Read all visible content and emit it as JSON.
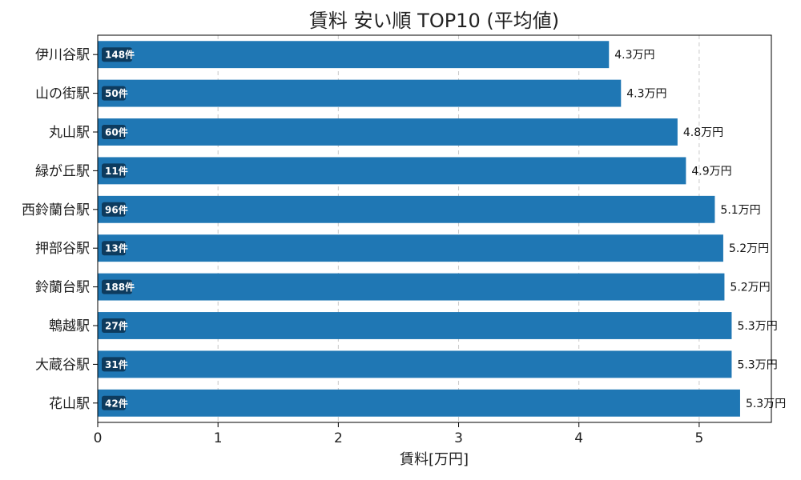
{
  "chart_data": {
    "type": "bar",
    "orientation": "horizontal",
    "title": "賃料 安い順 TOP10 (平均値)",
    "xlabel": "賃料[万円]",
    "ylabel": "",
    "xlim": [
      0,
      5.6
    ],
    "xticks": [
      0,
      1,
      2,
      3,
      4,
      5
    ],
    "grid": "x-dashed",
    "bar_color": "#1f77b4",
    "badge_color": "#0d3b5e",
    "categories": [
      "伊川谷駅",
      "山の街駅",
      "丸山駅",
      "緑が丘駅",
      "西鈴蘭台駅",
      "押部谷駅",
      "鈴蘭台駅",
      "鵯越駅",
      "大蔵谷駅",
      "花山駅"
    ],
    "values": [
      4.25,
      4.35,
      4.82,
      4.89,
      5.13,
      5.2,
      5.21,
      5.27,
      5.27,
      5.34
    ],
    "value_labels": [
      "4.3万円",
      "4.3万円",
      "4.8万円",
      "4.9万円",
      "5.1万円",
      "5.2万円",
      "5.2万円",
      "5.3万円",
      "5.3万円",
      "5.3万円"
    ],
    "counts": [
      "148件",
      "50件",
      "60件",
      "11件",
      "96件",
      "13件",
      "188件",
      "27件",
      "31件",
      "42件"
    ]
  }
}
